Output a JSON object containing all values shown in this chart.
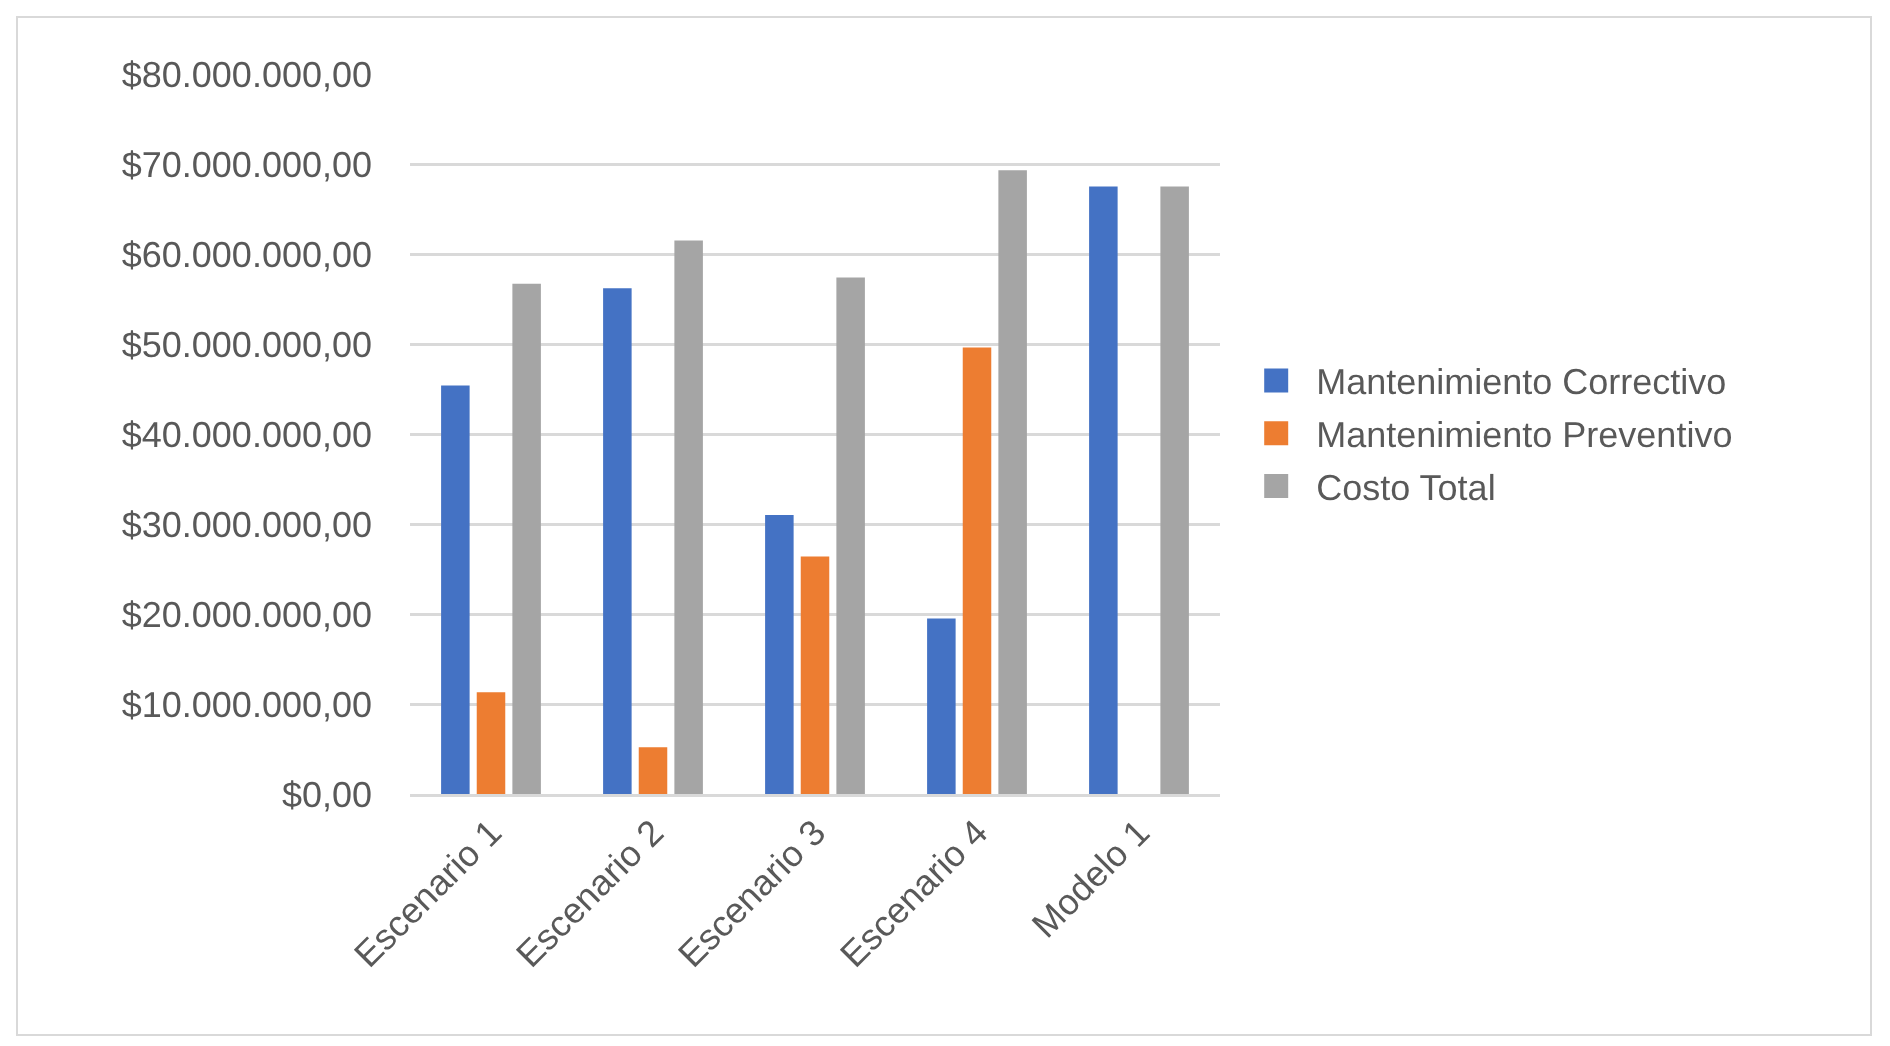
{
  "chart_data": {
    "type": "bar",
    "categories": [
      "Escenario 1",
      "Escenario 2",
      "Escenario 3",
      "Escenario 4",
      "Modelo 1"
    ],
    "series": [
      {
        "name": "Mantenimiento Correctivo",
        "color": "#4472c4",
        "values": [
          45400000,
          56200000,
          31000000,
          19500000,
          67500000
        ]
      },
      {
        "name": "Mantenimiento Preventivo",
        "color": "#ed7d31",
        "values": [
          11300000,
          5200000,
          26400000,
          49600000,
          null
        ]
      },
      {
        "name": "Costo Total",
        "color": "#a5a5a5",
        "values": [
          56700000,
          61500000,
          57400000,
          69300000,
          67500000
        ]
      }
    ],
    "ylim": [
      0,
      80000000
    ],
    "yticks": [
      {
        "value": 0,
        "label": "$0,00"
      },
      {
        "value": 10000000,
        "label": "$10.000.000,00"
      },
      {
        "value": 20000000,
        "label": "$20.000.000,00"
      },
      {
        "value": 30000000,
        "label": "$30.000.000,00"
      },
      {
        "value": 40000000,
        "label": "$40.000.000,00"
      },
      {
        "value": 50000000,
        "label": "$50.000.000,00"
      },
      {
        "value": 60000000,
        "label": "$60.000.000,00"
      },
      {
        "value": 70000000,
        "label": "$70.000.000,00"
      },
      {
        "value": 80000000,
        "label": "$80.000.000,00"
      }
    ],
    "grid": "y",
    "legend": "right"
  }
}
